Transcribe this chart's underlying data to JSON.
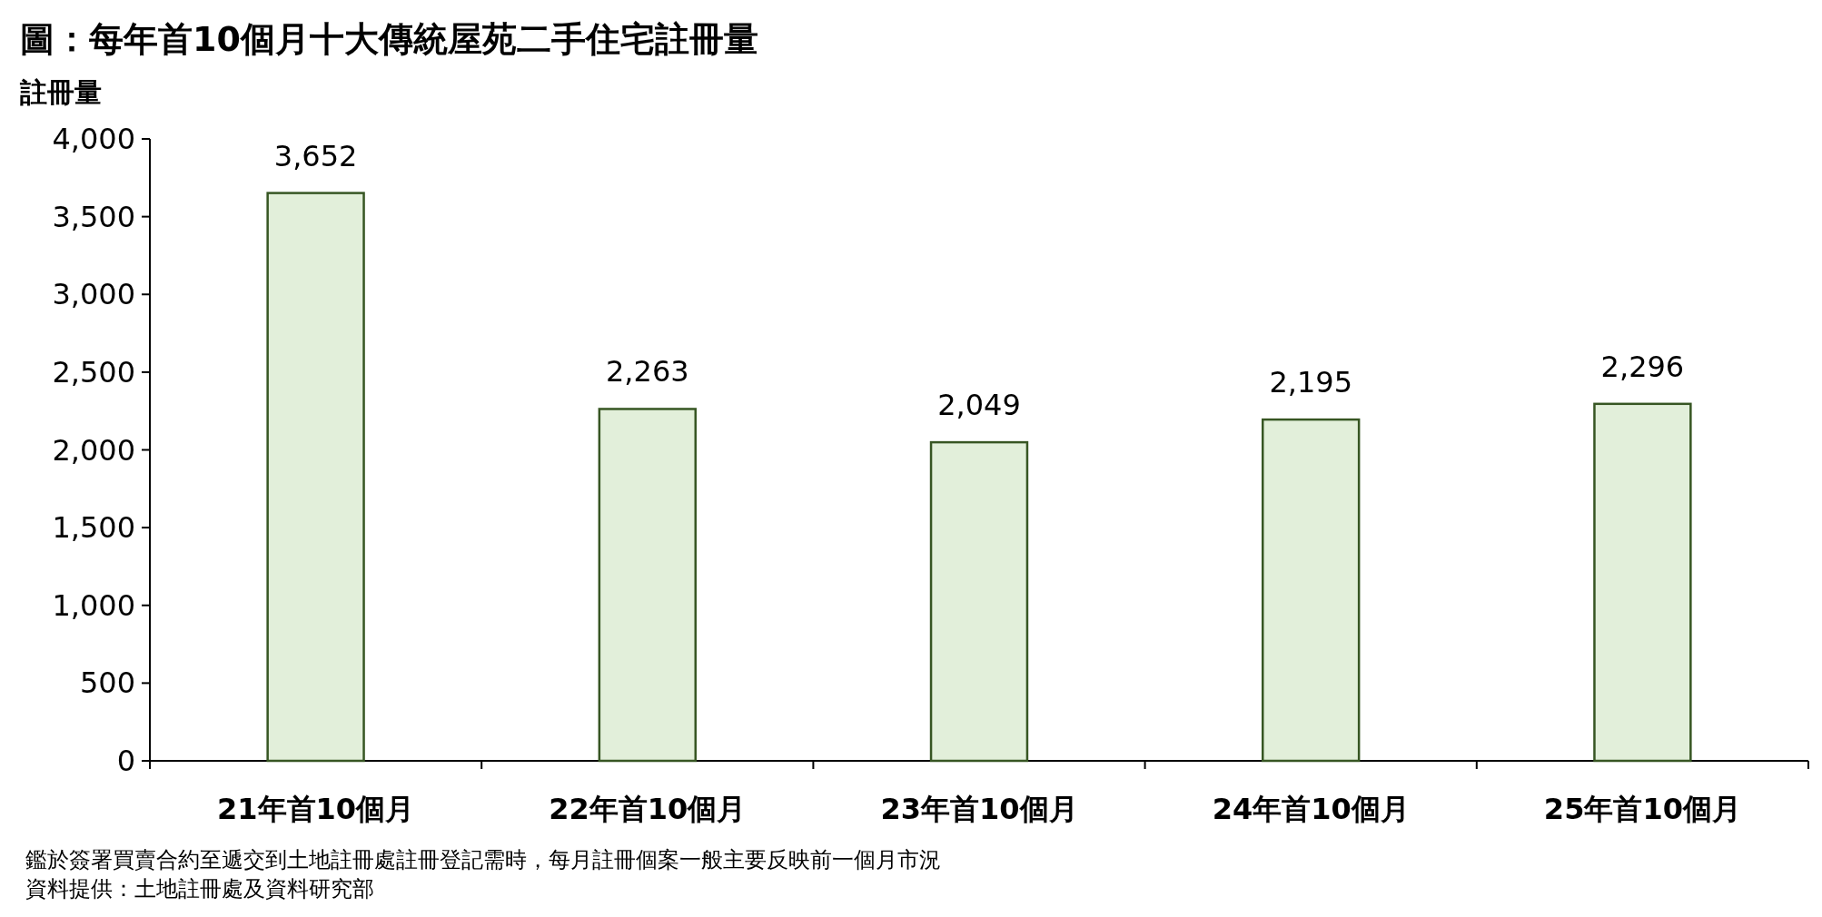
{
  "chart_data": {
    "type": "bar",
    "title": "圖：每年首10個月十大傳統屋苑二手住宅註冊量",
    "ylabel": "註冊量",
    "categories": [
      "21年首10個月",
      "22年首10個月",
      "23年首10個月",
      "24年首10個月",
      "25年首10個月"
    ],
    "values": [
      3652,
      2263,
      2049,
      2195,
      2296
    ],
    "color": "#e2efda",
    "ylim": [
      0,
      4000
    ],
    "yticks": [
      0,
      500,
      {
        "value": 1000,
        "label": "1,000"
      },
      {
        "value": 1500,
        "label": "1,500"
      },
      {
        "value": 2000,
        "label": "2,000"
      },
      {
        "value": 2500,
        "label": "2,500"
      },
      {
        "value": 3000,
        "label": "3,000"
      },
      {
        "value": 3500,
        "label": "3,500"
      },
      {
        "value": 4000,
        "label": "4,000"
      }
    ],
    "value_labels": [
      "3,652",
      "2,263",
      "2,049",
      "2,195",
      "2,296"
    ],
    "annotations": [
      "鑑於簽署買賣合約至遞交到土地註冊處註冊登記需時，每月註冊個案一般主要反映前一個月市況",
      "資料提供：土地註冊處及資料研究部"
    ]
  }
}
